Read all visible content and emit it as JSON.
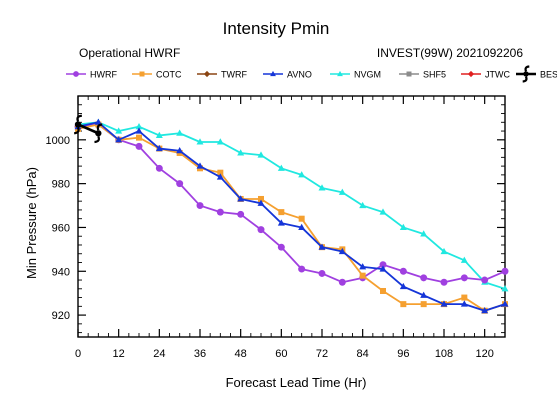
{
  "chart_data": {
    "type": "line",
    "title": "Intensity Pmin",
    "subtitle_left": "Operational HWRF",
    "subtitle_right": "INVEST(99W) 2021092206",
    "xlabel": "Forecast Lead Time (Hr)",
    "ylabel": "Min Pressure (hPa)",
    "xlim": [
      0,
      126
    ],
    "ylim": [
      910,
      1020
    ],
    "x_ticks": [
      0,
      12,
      24,
      36,
      48,
      60,
      72,
      84,
      96,
      108,
      120
    ],
    "y_ticks": [
      920,
      940,
      960,
      980,
      1000
    ],
    "grid": false,
    "legend_position": "top",
    "series": [
      {
        "name": "HWRF",
        "color": "#A040E0",
        "marker": "circle",
        "x": [
          0,
          6,
          12,
          18,
          24,
          30,
          36,
          42,
          48,
          54,
          60,
          66,
          72,
          78,
          84,
          90,
          96,
          102,
          108,
          114,
          120,
          126
        ],
        "y": [
          1006,
          1007,
          1000,
          997,
          987,
          980,
          970,
          967,
          966,
          959,
          951,
          941,
          939,
          935,
          937,
          943,
          940,
          937,
          935,
          937,
          936,
          940
        ]
      },
      {
        "name": "COTC",
        "color": "#F5A030",
        "marker": "square",
        "x": [
          0,
          6,
          12,
          18,
          24,
          30,
          36,
          42,
          48,
          54,
          60,
          66,
          72,
          78,
          84,
          90,
          96,
          102,
          108,
          114,
          120,
          126
        ],
        "y": [
          1005,
          1007,
          1000,
          1001,
          996,
          994,
          987,
          985,
          973,
          973,
          967,
          964,
          951,
          950,
          938,
          931,
          925,
          925,
          925,
          928,
          922,
          925
        ]
      },
      {
        "name": "TWRF",
        "color": "#8B4513",
        "marker": "diamond",
        "x": [],
        "y": []
      },
      {
        "name": "AVNO",
        "color": "#1535D8",
        "marker": "triangle",
        "x": [
          0,
          6,
          12,
          18,
          24,
          30,
          36,
          42,
          48,
          54,
          60,
          66,
          72,
          78,
          84,
          90,
          96,
          102,
          108,
          114,
          120,
          126
        ],
        "y": [
          1006,
          1008,
          1000,
          1004,
          996,
          995,
          988,
          983,
          973,
          971,
          962,
          960,
          951,
          949,
          942,
          941,
          933,
          929,
          925,
          925,
          922,
          925
        ]
      },
      {
        "name": "NVGM",
        "color": "#20E8E0",
        "marker": "triangle",
        "x": [
          0,
          6,
          12,
          18,
          24,
          30,
          36,
          42,
          48,
          54,
          60,
          66,
          72,
          78,
          84,
          90,
          96,
          102,
          108,
          114,
          120,
          126
        ],
        "y": [
          1007,
          1008,
          1004,
          1006,
          1002,
          1003,
          999,
          999,
          994,
          993,
          987,
          984,
          978,
          976,
          970,
          967,
          960,
          957,
          949,
          945,
          935,
          932
        ]
      },
      {
        "name": "SHF5",
        "color": "#8C8C8C",
        "marker": "square",
        "x": [],
        "y": []
      },
      {
        "name": "JTWC",
        "color": "#E02020",
        "marker": "diamond",
        "x": [],
        "y": []
      },
      {
        "name": "BEST",
        "color": "#000000",
        "marker": "hurricane",
        "x": [
          0,
          6
        ],
        "y": [
          1007,
          1003
        ]
      }
    ]
  }
}
